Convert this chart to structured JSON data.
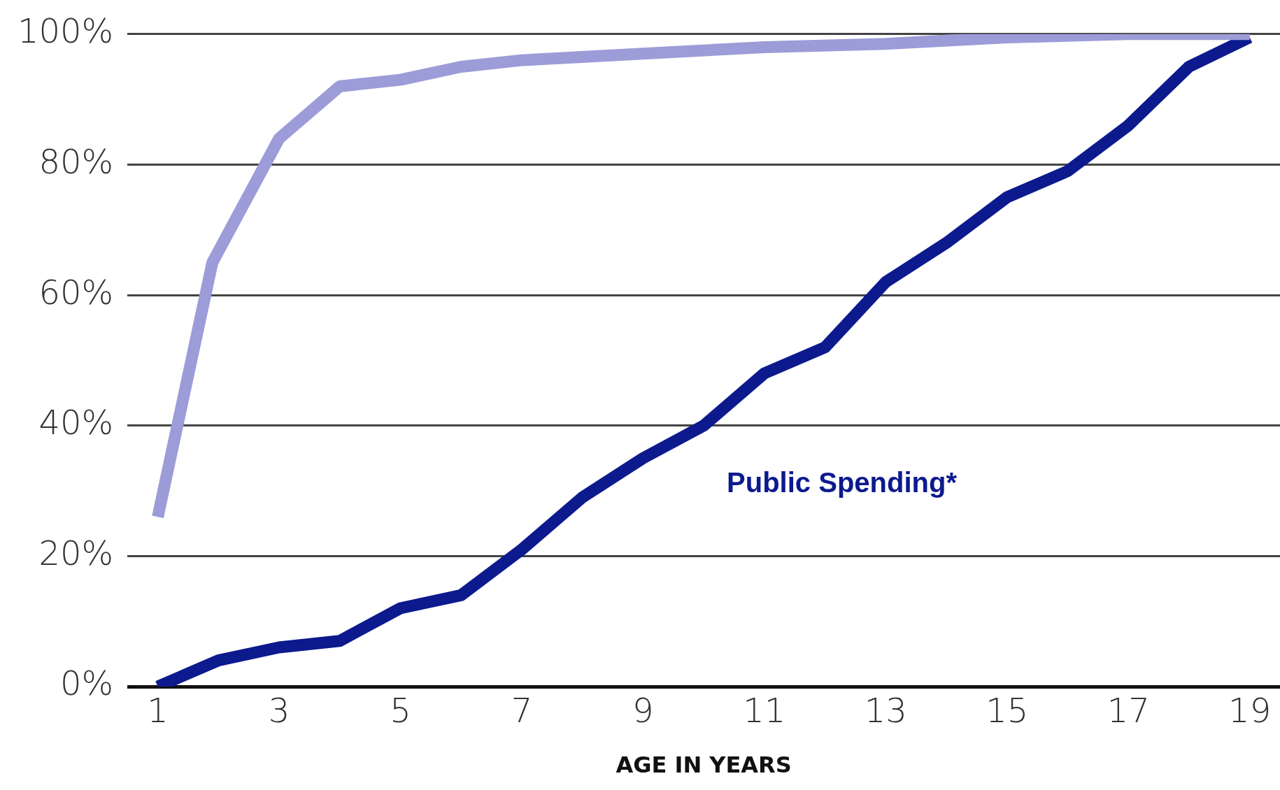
{
  "chart_data": {
    "type": "line",
    "xlabel": "AGE IN YEARS",
    "xlim": [
      0.5,
      19.5
    ],
    "xticks": [
      1,
      3,
      5,
      7,
      9,
      11,
      13,
      15,
      17,
      19
    ],
    "ylim": [
      0,
      100
    ],
    "yticks": [
      {
        "value": 0,
        "label": "0%"
      },
      {
        "value": 20,
        "label": "20%"
      },
      {
        "value": 40,
        "label": "40%"
      },
      {
        "value": 60,
        "label": "60%"
      },
      {
        "value": 80,
        "label": "80%"
      },
      {
        "value": 100,
        "label": "100%"
      }
    ],
    "grid": "y",
    "legend": false,
    "marker": "none",
    "line_style": "solid",
    "series": [
      {
        "color": "#9c9cd8",
        "x": [
          1,
          1.9,
          3,
          4,
          5,
          6,
          7,
          9,
          11,
          13,
          15,
          17,
          19
        ],
        "values": [
          26,
          65,
          84,
          92,
          93,
          95,
          96,
          97,
          98,
          98.5,
          99.5,
          100,
          100
        ]
      },
      {
        "name": "Public Spending*",
        "color": "#0c1a8e",
        "x": [
          1,
          2,
          3,
          4,
          5,
          6,
          7,
          8,
          9,
          10,
          11,
          12,
          13,
          14,
          15,
          16,
          17,
          18,
          19
        ],
        "values": [
          0,
          4,
          6,
          7,
          12,
          14,
          21,
          29,
          35,
          40,
          48,
          52,
          62,
          68,
          75,
          79,
          86,
          95,
          99.5
        ]
      }
    ]
  }
}
